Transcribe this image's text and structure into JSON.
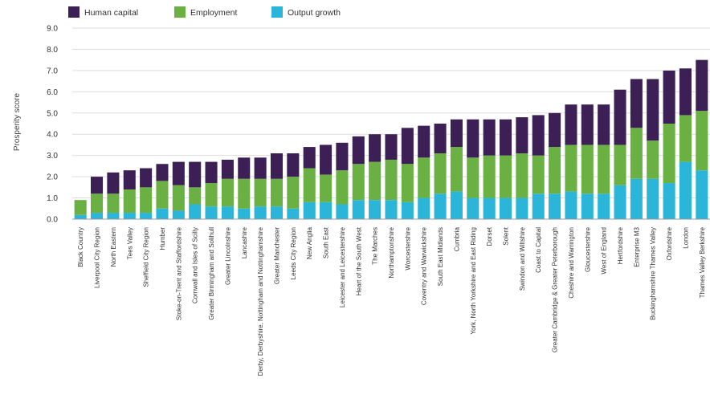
{
  "chart_data": {
    "type": "bar",
    "stacked": true,
    "title": "",
    "xlabel": "",
    "ylabel": "Prosperity score",
    "ylim": [
      0,
      9
    ],
    "yticks": [
      "0.0",
      "1.0",
      "2.0",
      "3.0",
      "4.0",
      "5.0",
      "6.0",
      "7.0",
      "8.0",
      "9.0"
    ],
    "grid": true,
    "legend_position": "top-left",
    "categories": [
      "Black Country",
      "Liverpool City Region",
      "North Eastern",
      "Tees Valley",
      "Sheffield City Region",
      "Humber",
      "Stoke-on-Trent and Staffordshire",
      "Cornwall and Isles of Scilly",
      "Greater Birmingham and Solihull",
      "Greater Lincolnshire",
      "Lancashire",
      "Derby, Derbyshire, Nottingham and Nottinghamshire",
      "Greater Manchester",
      "Leeds City Region",
      "New Anglia",
      "South East",
      "Leicester and Leicestershire",
      "Heart of the South West",
      "The Marches",
      "Northamptonshire",
      "Worcestershire",
      "Coventry and Warwickshire",
      "South East Midlands",
      "Cumbria",
      "York, North Yorkshire and East Riding",
      "Dorset",
      "Solent",
      "Swindon and Wiltshire",
      "Coast to Capital",
      "Greater Cambridge & Greater Peterborough",
      "Cheshire and Warrington",
      "Gloucestershire",
      "West of England",
      "Hertfordshire",
      "Enterprise M3",
      "Buckinghamshire Thames Valley",
      "Oxfordshire",
      "London",
      "Thames Valley Berkshire"
    ],
    "series": [
      {
        "name": "Output growth",
        "color": "#2bb5d8",
        "values": [
          0.2,
          0.3,
          0.3,
          0.3,
          0.3,
          0.5,
          0.4,
          0.7,
          0.6,
          0.6,
          0.5,
          0.6,
          0.6,
          0.5,
          0.8,
          0.8,
          0.7,
          0.9,
          0.9,
          0.9,
          0.8,
          1.0,
          1.2,
          1.3,
          1.0,
          1.0,
          1.0,
          1.0,
          1.2,
          1.2,
          1.3,
          1.2,
          1.2,
          1.6,
          1.9,
          1.9,
          1.7,
          2.7,
          2.3
        ]
      },
      {
        "name": "Employment",
        "color": "#6ab043",
        "values": [
          0.7,
          0.9,
          0.9,
          1.1,
          1.2,
          1.3,
          1.2,
          0.8,
          1.1,
          1.3,
          1.4,
          1.3,
          1.3,
          1.5,
          1.6,
          1.3,
          1.6,
          1.7,
          1.8,
          1.9,
          1.8,
          1.9,
          1.9,
          2.1,
          1.9,
          2.0,
          2.0,
          2.1,
          1.8,
          2.2,
          2.2,
          2.3,
          2.3,
          1.9,
          2.4,
          1.8,
          2.8,
          2.2,
          2.8
        ]
      },
      {
        "name": "Human capital",
        "color": "#3b1f55",
        "values": [
          0.0,
          0.8,
          1.0,
          0.9,
          0.9,
          0.8,
          1.1,
          1.2,
          1.0,
          0.9,
          1.0,
          1.0,
          1.2,
          1.1,
          1.0,
          1.4,
          1.3,
          1.3,
          1.3,
          1.2,
          1.7,
          1.5,
          1.4,
          1.3,
          1.8,
          1.7,
          1.7,
          1.7,
          1.9,
          1.6,
          1.9,
          1.9,
          1.9,
          2.6,
          2.3,
          2.9,
          2.5,
          2.2,
          2.4
        ]
      }
    ],
    "legend_order": [
      "Human capital",
      "Employment",
      "Output growth"
    ]
  }
}
